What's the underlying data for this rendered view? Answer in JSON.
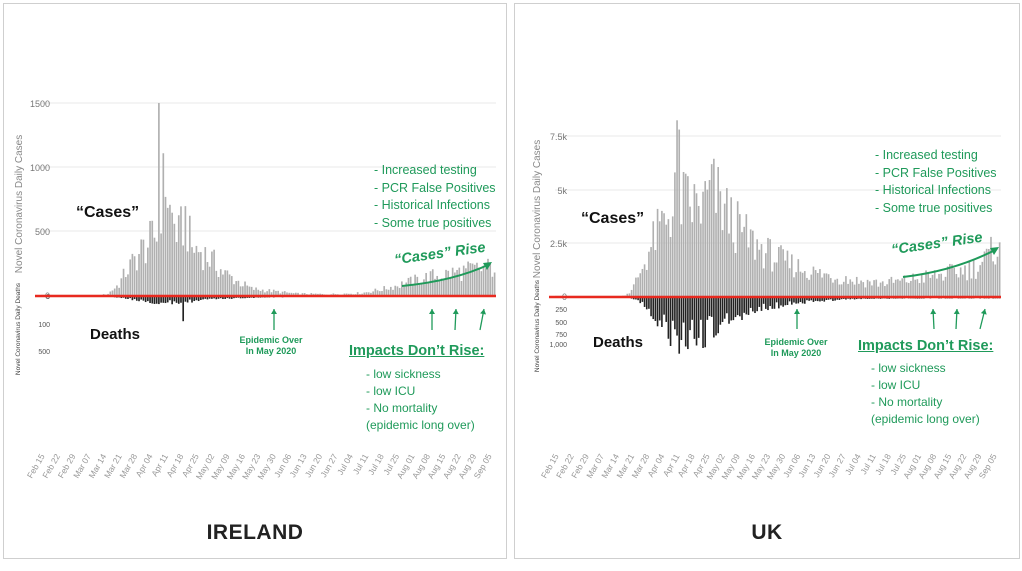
{
  "chart_data": [
    {
      "type": "bar",
      "title": "IRELAND",
      "ylabel": "Novel Coronavirus Daily Cases",
      "deaths_ylabel": "Novel Coronavirus Daily Deaths",
      "ylim": [
        0,
        1500
      ],
      "yticks": [
        "1500",
        "1000",
        "500",
        "0"
      ],
      "deaths_yticks": [
        "0",
        "100",
        "500"
      ],
      "xticks": [
        "Feb 15",
        "Feb 22",
        "Feb 29",
        "Mar 07",
        "Mar 14",
        "Mar 21",
        "Mar 28",
        "Apr 04",
        "Apr 11",
        "Apr 18",
        "Apr 25",
        "May 02",
        "May 09",
        "May 16",
        "May 23",
        "May 30",
        "Jun 06",
        "Jun 13",
        "Jun 20",
        "Jun 27",
        "Jul 04",
        "Jul 11",
        "Jul 18",
        "Jul 25",
        "Aug 01",
        "Aug 08",
        "Aug 15",
        "Aug 22",
        "Aug 29",
        "Sep 05"
      ],
      "cases_profile": [
        [
          0,
          0
        ],
        [
          25,
          0
        ],
        [
          30,
          20
        ],
        [
          35,
          100
        ],
        [
          38,
          200
        ],
        [
          42,
          300
        ],
        [
          45,
          380
        ],
        [
          48,
          430
        ],
        [
          52,
          520
        ],
        [
          53,
          1500
        ],
        [
          54,
          800
        ],
        [
          56,
          1000
        ],
        [
          58,
          700
        ],
        [
          62,
          500
        ],
        [
          65,
          650
        ],
        [
          68,
          400
        ],
        [
          72,
          380
        ],
        [
          78,
          280
        ],
        [
          82,
          200
        ],
        [
          88,
          130
        ],
        [
          95,
          60
        ],
        [
          105,
          40
        ],
        [
          115,
          20
        ],
        [
          130,
          15
        ],
        [
          145,
          25
        ],
        [
          155,
          60
        ],
        [
          165,
          110
        ],
        [
          175,
          160
        ],
        [
          185,
          190
        ],
        [
          195,
          220
        ],
        [
          205,
          240
        ]
      ],
      "deaths_profile": [
        [
          0,
          0
        ],
        [
          30,
          0
        ],
        [
          34,
          5
        ],
        [
          38,
          15
        ],
        [
          42,
          25
        ],
        [
          46,
          40
        ],
        [
          50,
          50
        ],
        [
          55,
          60
        ],
        [
          60,
          55
        ],
        [
          65,
          45
        ],
        [
          72,
          35
        ],
        [
          80,
          20
        ],
        [
          90,
          10
        ],
        [
          100,
          5
        ],
        [
          110,
          2
        ],
        [
          125,
          1
        ],
        [
          205,
          1
        ]
      ],
      "deaths_spike": {
        "index": 64,
        "value": 220
      },
      "grid": true,
      "baseline_color": "#e8291f",
      "bar_color": "#b0b0b0",
      "deaths_color": "#222222"
    },
    {
      "type": "bar",
      "title": "UK",
      "ylabel": "Novel Coronavirus Daily Cases",
      "deaths_ylabel": "Novel Coronavirus Daily Deaths",
      "ylim": [
        0,
        7500
      ],
      "yticks": [
        "7.5k",
        "5k",
        "2.5k",
        "0"
      ],
      "deaths_yticks": [
        "250",
        "500",
        "750",
        "1,000"
      ],
      "xticks": [
        "Feb 15",
        "Feb 22",
        "Feb 29",
        "Mar 07",
        "Mar 14",
        "Mar 21",
        "Mar 28",
        "Apr 04",
        "Apr 11",
        "Apr 18",
        "Apr 25",
        "May 02",
        "May 09",
        "May 16",
        "May 23",
        "May 30",
        "Jun 06",
        "Jun 13",
        "Jun 20",
        "Jun 27",
        "Jul 04",
        "Jul 11",
        "Jul 18",
        "Jul 25",
        "Aug 01",
        "Aug 08",
        "Aug 15",
        "Aug 22",
        "Aug 29",
        "Sep 05"
      ],
      "cases_profile": [
        [
          0,
          0
        ],
        [
          30,
          0
        ],
        [
          35,
          300
        ],
        [
          40,
          1500
        ],
        [
          45,
          2800
        ],
        [
          50,
          3800
        ],
        [
          54,
          4500
        ],
        [
          57,
          7800
        ],
        [
          58,
          4800
        ],
        [
          62,
          4600
        ],
        [
          68,
          4500
        ],
        [
          72,
          5400
        ],
        [
          76,
          4700
        ],
        [
          82,
          3700
        ],
        [
          90,
          2800
        ],
        [
          98,
          2200
        ],
        [
          105,
          1800
        ],
        [
          112,
          1500
        ],
        [
          120,
          1200
        ],
        [
          130,
          1000
        ],
        [
          140,
          800
        ],
        [
          150,
          700
        ],
        [
          160,
          800
        ],
        [
          170,
          1000
        ],
        [
          178,
          1100
        ],
        [
          186,
          1300
        ],
        [
          194,
          1500
        ],
        [
          200,
          2000
        ],
        [
          205,
          2900
        ]
      ],
      "deaths_profile": [
        [
          0,
          0
        ],
        [
          34,
          0
        ],
        [
          38,
          50
        ],
        [
          42,
          200
        ],
        [
          46,
          400
        ],
        [
          50,
          600
        ],
        [
          54,
          800
        ],
        [
          58,
          900
        ],
        [
          62,
          850
        ],
        [
          67,
          800
        ],
        [
          72,
          700
        ],
        [
          78,
          550
        ],
        [
          84,
          400
        ],
        [
          90,
          300
        ],
        [
          96,
          230
        ],
        [
          104,
          150
        ],
        [
          112,
          100
        ],
        [
          120,
          70
        ],
        [
          130,
          40
        ],
        [
          140,
          20
        ],
        [
          150,
          15
        ],
        [
          160,
          10
        ],
        [
          205,
          8
        ]
      ],
      "grid": true,
      "baseline_color": "#e8291f",
      "bar_color": "#b0b0b0",
      "deaths_color": "#222222"
    }
  ],
  "annotations": {
    "ireland": {
      "cases_label": "“Cases”",
      "deaths_label": "Deaths",
      "bullets": [
        "- Increased testing",
        "- PCR False Positives",
        "- Historical Infections",
        "- Some true positives"
      ],
      "rise_label": "“Cases” Rise",
      "epidemic_over": [
        "Epidemic Over",
        "In May 2020"
      ],
      "impacts_title": "Impacts Don’t Rise:",
      "impacts": [
        "- low sickness",
        "- low ICU",
        "- No mortality",
        "(epidemic long over)"
      ],
      "country": "IRELAND"
    },
    "uk": {
      "cases_label": "“Cases”",
      "deaths_label": "Deaths",
      "bullets": [
        "- Increased testing",
        "- PCR False Positives",
        "- Historical Infections",
        "- Some true positives"
      ],
      "rise_label": "“Cases” Rise",
      "epidemic_over": [
        "Epidemic Over",
        "In May 2020"
      ],
      "impacts_title": "Impacts Don’t Rise:",
      "impacts": [
        "- low sickness",
        "- low ICU",
        "- No mortality",
        "(epidemic long over)"
      ],
      "country": "UK"
    }
  },
  "colors": {
    "annotation_green": "#1f9a5a",
    "baseline_red": "#e8291f"
  }
}
